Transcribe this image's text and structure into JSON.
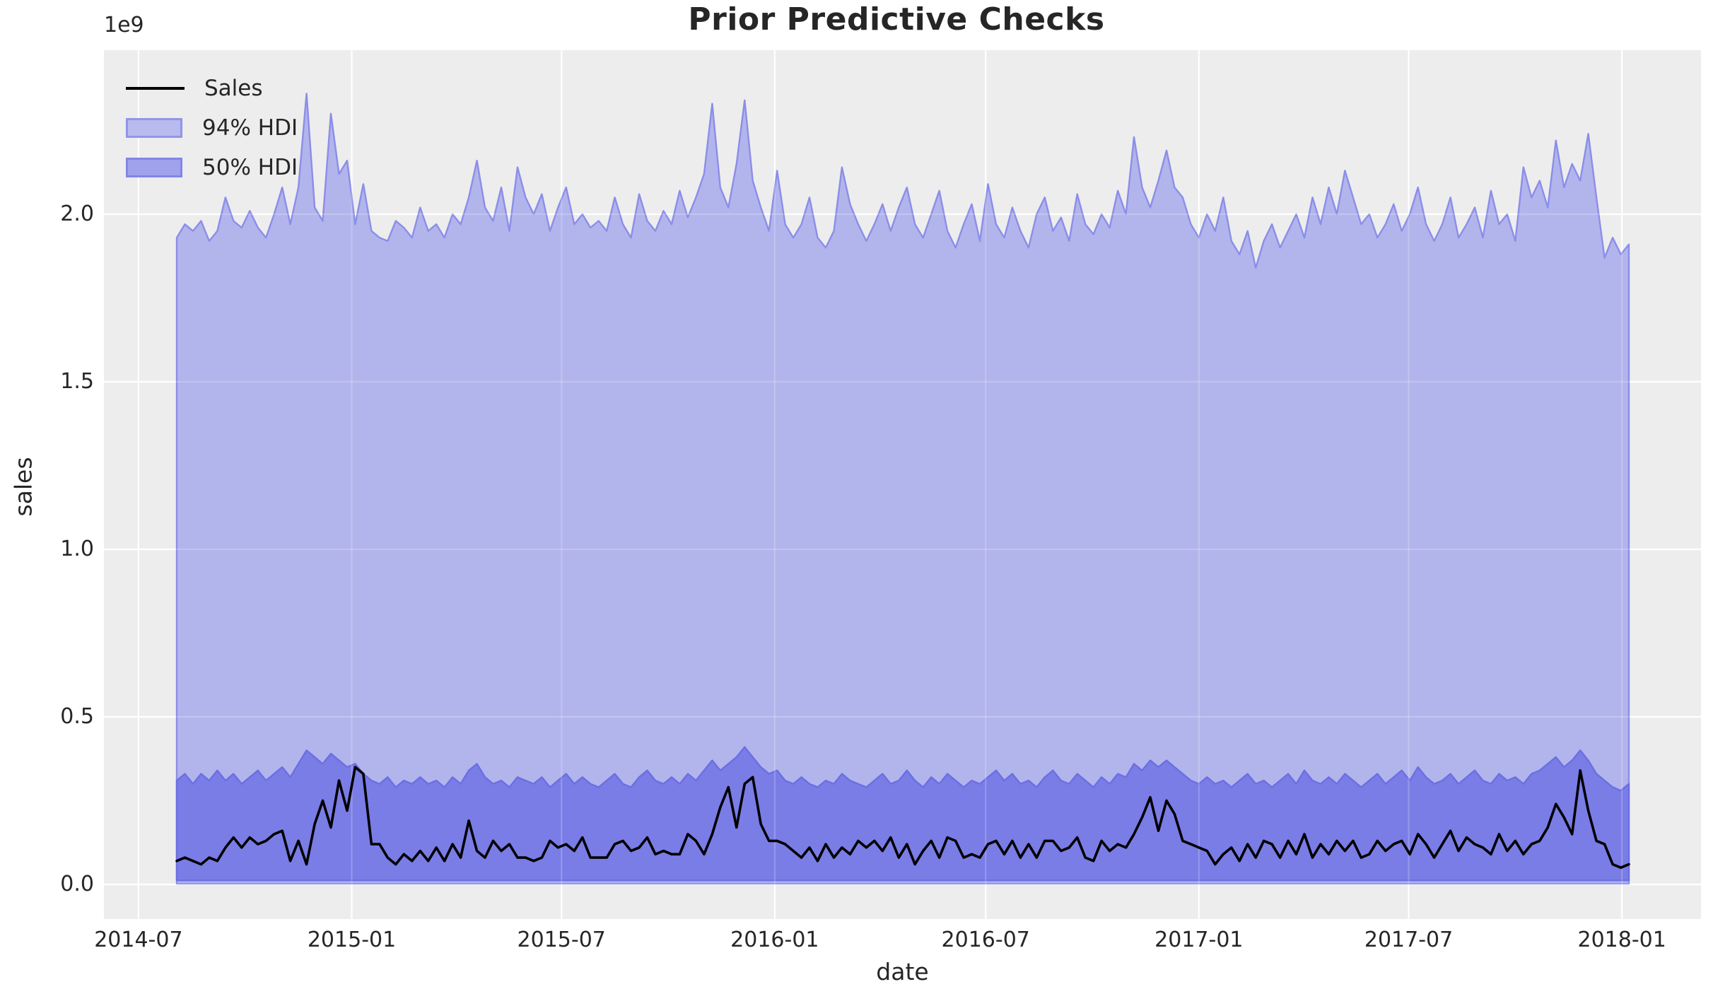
{
  "title": "Prior Predictive Checks",
  "axis_offset_label": "1e9",
  "x_axis_label": "date",
  "y_axis_label": "sales",
  "legend": {
    "items": [
      {
        "label": "Sales",
        "type": "line",
        "color": "#000000"
      },
      {
        "label": "94% HDI",
        "type": "patch",
        "color": "#b9baee"
      },
      {
        "label": "50% HDI",
        "type": "patch",
        "color": "#a0a2ec"
      }
    ]
  },
  "colors": {
    "figure_background": "#ffffff",
    "axes_background": "#ededed",
    "grid": "#ffffff",
    "sales_line": "#000000",
    "hdi94_fill": "#b2b4ec",
    "hdi94_edge": "#8b8ee8",
    "hdi50_fill": "#7a7de6",
    "hdi50_edge": "#6b6fe2",
    "text": "#262626"
  },
  "chart_data": {
    "type": "line",
    "title": "Prior Predictive Checks",
    "xlabel": "date",
    "ylabel": "sales",
    "y_offset_multiplier": "1e9",
    "y_units": "1e9 (billions)",
    "ylim": [
      -0.1,
      2.49
    ],
    "grid": true,
    "legend_position": "upper left",
    "x_start_date": "2014-08-03",
    "x_step_days": 7,
    "n_points": 180,
    "x_ticks": [
      {
        "label": "2014-07",
        "date": "2014-07-01"
      },
      {
        "label": "2015-01",
        "date": "2015-01-01"
      },
      {
        "label": "2015-07",
        "date": "2015-07-01"
      },
      {
        "label": "2016-01",
        "date": "2016-01-01"
      },
      {
        "label": "2016-07",
        "date": "2016-07-01"
      },
      {
        "label": "2017-01",
        "date": "2017-01-01"
      },
      {
        "label": "2017-07",
        "date": "2017-07-01"
      },
      {
        "label": "2018-01",
        "date": "2018-01-01"
      }
    ],
    "y_ticks": [
      {
        "label": "0.0",
        "value": 0.0
      },
      {
        "label": "0.5",
        "value": 0.5
      },
      {
        "label": "1.0",
        "value": 1.0
      },
      {
        "label": "1.5",
        "value": 1.5
      },
      {
        "label": "2.0",
        "value": 2.0
      }
    ],
    "series": [
      {
        "name": "Sales",
        "style": "line",
        "values": [
          0.07,
          0.08,
          0.07,
          0.06,
          0.08,
          0.07,
          0.11,
          0.14,
          0.11,
          0.14,
          0.12,
          0.13,
          0.15,
          0.16,
          0.07,
          0.13,
          0.06,
          0.18,
          0.25,
          0.17,
          0.31,
          0.22,
          0.35,
          0.33,
          0.12,
          0.12,
          0.08,
          0.06,
          0.09,
          0.07,
          0.1,
          0.07,
          0.11,
          0.07,
          0.12,
          0.08,
          0.19,
          0.1,
          0.08,
          0.13,
          0.1,
          0.12,
          0.08,
          0.08,
          0.07,
          0.08,
          0.13,
          0.11,
          0.12,
          0.1,
          0.14,
          0.08,
          0.08,
          0.08,
          0.12,
          0.13,
          0.1,
          0.11,
          0.14,
          0.09,
          0.1,
          0.09,
          0.09,
          0.15,
          0.13,
          0.09,
          0.15,
          0.23,
          0.29,
          0.17,
          0.3,
          0.32,
          0.18,
          0.13,
          0.13,
          0.12,
          0.1,
          0.08,
          0.11,
          0.07,
          0.12,
          0.08,
          0.11,
          0.09,
          0.13,
          0.11,
          0.13,
          0.1,
          0.14,
          0.08,
          0.12,
          0.06,
          0.1,
          0.13,
          0.08,
          0.14,
          0.13,
          0.08,
          0.09,
          0.08,
          0.12,
          0.13,
          0.09,
          0.13,
          0.08,
          0.12,
          0.08,
          0.13,
          0.13,
          0.1,
          0.11,
          0.14,
          0.08,
          0.07,
          0.13,
          0.1,
          0.12,
          0.11,
          0.15,
          0.2,
          0.26,
          0.16,
          0.25,
          0.21,
          0.13,
          0.12,
          0.11,
          0.1,
          0.06,
          0.09,
          0.11,
          0.07,
          0.12,
          0.08,
          0.13,
          0.12,
          0.08,
          0.13,
          0.09,
          0.15,
          0.08,
          0.12,
          0.09,
          0.13,
          0.1,
          0.13,
          0.08,
          0.09,
          0.13,
          0.1,
          0.12,
          0.13,
          0.09,
          0.15,
          0.12,
          0.08,
          0.12,
          0.16,
          0.1,
          0.14,
          0.12,
          0.11,
          0.09,
          0.15,
          0.1,
          0.13,
          0.09,
          0.12,
          0.13,
          0.17,
          0.24,
          0.2,
          0.15,
          0.34,
          0.22,
          0.13,
          0.12,
          0.06,
          0.05,
          0.06
        ]
      },
      {
        "name": "94% HDI upper",
        "style": "band-upper",
        "values": [
          1.93,
          1.97,
          1.95,
          1.98,
          1.92,
          1.95,
          2.05,
          1.98,
          1.96,
          2.01,
          1.96,
          1.93,
          2.0,
          2.08,
          1.97,
          2.08,
          2.36,
          2.02,
          1.98,
          2.3,
          2.12,
          2.16,
          1.97,
          2.09,
          1.95,
          1.93,
          1.92,
          1.98,
          1.96,
          1.93,
          2.02,
          1.95,
          1.97,
          1.93,
          2.0,
          1.97,
          2.05,
          2.16,
          2.02,
          1.98,
          2.08,
          1.95,
          2.14,
          2.05,
          2.0,
          2.06,
          1.95,
          2.02,
          2.08,
          1.97,
          2.0,
          1.96,
          1.98,
          1.95,
          2.05,
          1.97,
          1.93,
          2.06,
          1.98,
          1.95,
          2.01,
          1.97,
          2.07,
          1.99,
          2.05,
          2.12,
          2.33,
          2.08,
          2.02,
          2.15,
          2.34,
          2.1,
          2.02,
          1.95,
          2.13,
          1.97,
          1.93,
          1.97,
          2.05,
          1.93,
          1.9,
          1.95,
          2.14,
          2.03,
          1.97,
          1.92,
          1.97,
          2.03,
          1.95,
          2.02,
          2.08,
          1.97,
          1.93,
          2.0,
          2.07,
          1.95,
          1.9,
          1.97,
          2.03,
          1.92,
          2.09,
          1.97,
          1.93,
          2.02,
          1.95,
          1.9,
          2.0,
          2.05,
          1.95,
          1.99,
          1.92,
          2.06,
          1.97,
          1.94,
          2.0,
          1.96,
          2.07,
          2.0,
          2.23,
          2.08,
          2.02,
          2.1,
          2.19,
          2.08,
          2.05,
          1.97,
          1.93,
          2.0,
          1.95,
          2.05,
          1.92,
          1.88,
          1.95,
          1.84,
          1.92,
          1.97,
          1.9,
          1.95,
          2.0,
          1.93,
          2.05,
          1.97,
          2.08,
          2.0,
          2.13,
          2.05,
          1.97,
          2.0,
          1.93,
          1.97,
          2.03,
          1.95,
          2.0,
          2.08,
          1.97,
          1.92,
          1.97,
          2.05,
          1.93,
          1.97,
          2.02,
          1.93,
          2.07,
          1.97,
          2.0,
          1.92,
          2.14,
          2.05,
          2.1,
          2.02,
          2.22,
          2.08,
          2.15,
          2.1,
          2.24,
          2.05,
          1.87,
          1.93,
          1.88,
          1.91
        ]
      },
      {
        "name": "94% HDI lower",
        "style": "band-lower",
        "constant_value": 0.002
      },
      {
        "name": "50% HDI upper",
        "style": "band-upper",
        "values": [
          0.31,
          0.33,
          0.3,
          0.33,
          0.31,
          0.34,
          0.31,
          0.33,
          0.3,
          0.32,
          0.34,
          0.31,
          0.33,
          0.35,
          0.32,
          0.36,
          0.4,
          0.38,
          0.36,
          0.39,
          0.37,
          0.35,
          0.36,
          0.33,
          0.31,
          0.3,
          0.32,
          0.29,
          0.31,
          0.3,
          0.32,
          0.3,
          0.31,
          0.29,
          0.32,
          0.3,
          0.34,
          0.36,
          0.32,
          0.3,
          0.31,
          0.29,
          0.32,
          0.31,
          0.3,
          0.32,
          0.29,
          0.31,
          0.33,
          0.3,
          0.32,
          0.3,
          0.29,
          0.31,
          0.33,
          0.3,
          0.29,
          0.32,
          0.34,
          0.31,
          0.3,
          0.32,
          0.3,
          0.33,
          0.31,
          0.34,
          0.37,
          0.34,
          0.36,
          0.38,
          0.41,
          0.38,
          0.35,
          0.33,
          0.34,
          0.31,
          0.3,
          0.32,
          0.3,
          0.29,
          0.31,
          0.3,
          0.33,
          0.31,
          0.3,
          0.29,
          0.31,
          0.33,
          0.3,
          0.31,
          0.34,
          0.31,
          0.29,
          0.32,
          0.3,
          0.33,
          0.31,
          0.29,
          0.31,
          0.3,
          0.32,
          0.34,
          0.31,
          0.33,
          0.3,
          0.31,
          0.29,
          0.32,
          0.34,
          0.31,
          0.3,
          0.33,
          0.31,
          0.29,
          0.32,
          0.3,
          0.33,
          0.32,
          0.36,
          0.34,
          0.37,
          0.35,
          0.37,
          0.35,
          0.33,
          0.31,
          0.3,
          0.32,
          0.3,
          0.31,
          0.29,
          0.31,
          0.33,
          0.3,
          0.31,
          0.29,
          0.31,
          0.33,
          0.3,
          0.34,
          0.31,
          0.3,
          0.32,
          0.3,
          0.33,
          0.31,
          0.29,
          0.31,
          0.33,
          0.3,
          0.32,
          0.34,
          0.31,
          0.35,
          0.32,
          0.3,
          0.31,
          0.33,
          0.3,
          0.32,
          0.34,
          0.31,
          0.3,
          0.33,
          0.31,
          0.32,
          0.3,
          0.33,
          0.34,
          0.36,
          0.38,
          0.35,
          0.37,
          0.4,
          0.37,
          0.33,
          0.31,
          0.29,
          0.28,
          0.3
        ]
      },
      {
        "name": "50% HDI lower",
        "style": "band-lower",
        "constant_value": 0.012
      }
    ]
  }
}
